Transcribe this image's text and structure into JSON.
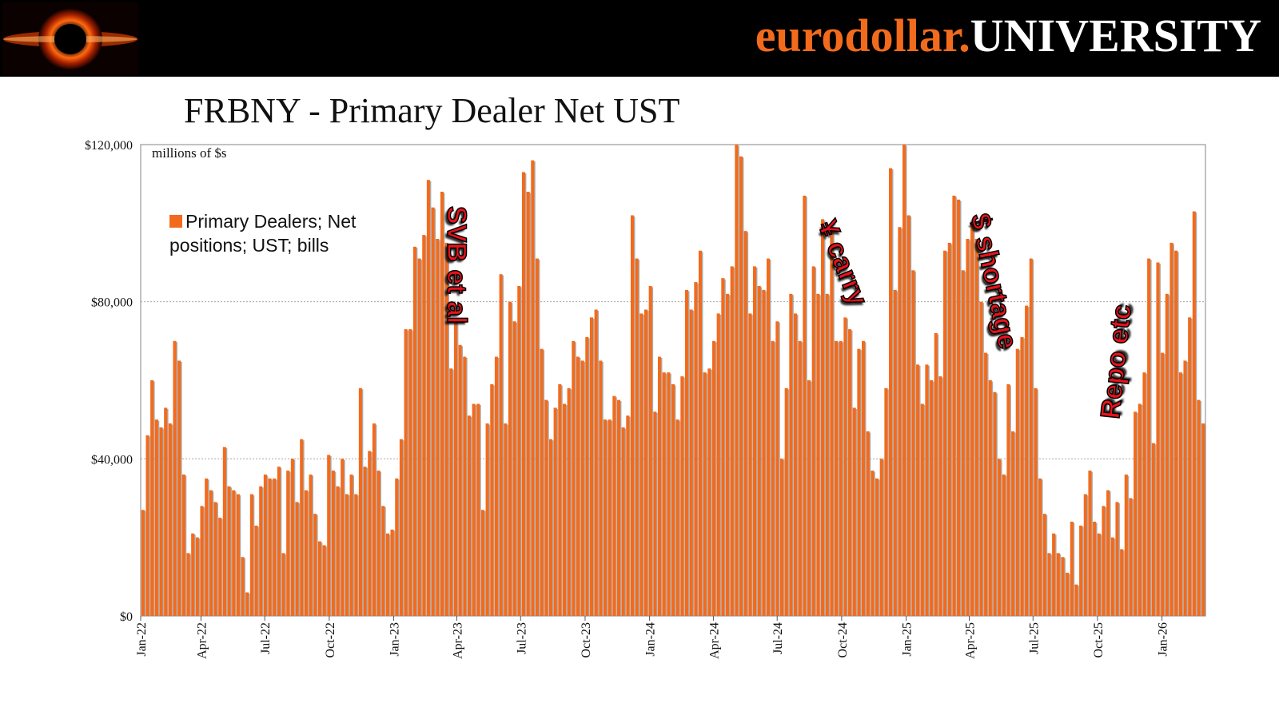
{
  "header": {
    "brand_part1": "eurodollar.",
    "brand_part2": "UNIVERSITY"
  },
  "page_title": "FRBNY - Primary Dealer Net UST",
  "units_note": "millions of $s",
  "legend_label": "Primary Dealers; Net positions; UST; bills",
  "annotations": [
    "SVB et al",
    "¥ carry",
    "$ shortage",
    "Repo etc"
  ],
  "colors": {
    "bar": "#f26b1d",
    "annotation": "#e8121b",
    "header_bg": "#000000",
    "brand_accent": "#f26b1d"
  },
  "chart_data": {
    "type": "bar",
    "title": "FRBNY - Primary Dealer Net UST",
    "ylabel": "millions of $s",
    "ylim": [
      0,
      120000
    ],
    "yticks": [
      0,
      40000,
      80000,
      120000
    ],
    "ytick_labels": [
      "$0",
      "$40,000",
      "$80,000",
      "$120,000"
    ],
    "x_start": "2022-01-05",
    "x_end": "2026-03-04",
    "xticks": [
      "Jan-22",
      "Apr-22",
      "Jul-22",
      "Oct-22",
      "Jan-23",
      "Apr-23",
      "Jul-23",
      "Oct-23",
      "Jan-24",
      "Apr-24",
      "Jul-24",
      "Oct-24",
      "Jan-25",
      "Apr-25",
      "Jul-25",
      "Oct-25",
      "Jan-26"
    ],
    "frequency": "weekly",
    "grid": true,
    "legend_position": "top-left",
    "series": [
      {
        "name": "Primary Dealers; Net positions; UST; bills",
        "values": [
          27000,
          46000,
          60000,
          50000,
          48000,
          53000,
          49000,
          70000,
          65000,
          36000,
          16000,
          21000,
          20000,
          28000,
          35000,
          32000,
          29000,
          25000,
          43000,
          33000,
          32000,
          31000,
          15000,
          6000,
          31000,
          23000,
          33000,
          36000,
          35000,
          35000,
          38000,
          16000,
          37000,
          40000,
          29000,
          45000,
          32000,
          36000,
          26000,
          19000,
          18000,
          41000,
          37000,
          33000,
          40000,
          31000,
          36000,
          31000,
          58000,
          38000,
          42000,
          49000,
          37000,
          28000,
          21000,
          22000,
          35000,
          45000,
          73000,
          73000,
          94000,
          91000,
          97000,
          111000,
          104000,
          96000,
          108000,
          95000,
          63000,
          75000,
          69000,
          66000,
          51000,
          54000,
          54000,
          27000,
          49000,
          59000,
          66000,
          87000,
          49000,
          80000,
          75000,
          84000,
          113000,
          108000,
          116000,
          91000,
          68000,
          55000,
          45000,
          53000,
          59000,
          54000,
          58000,
          70000,
          66000,
          65000,
          71000,
          76000,
          78000,
          65000,
          50000,
          50000,
          56000,
          55000,
          48000,
          51000,
          102000,
          91000,
          77000,
          78000,
          84000,
          52000,
          66000,
          62000,
          62000,
          59000,
          50000,
          61000,
          83000,
          78000,
          85000,
          93000,
          62000,
          63000,
          70000,
          77000,
          86000,
          82000,
          89000,
          120000,
          117000,
          98000,
          77000,
          89000,
          84000,
          83000,
          91000,
          70000,
          75000,
          40000,
          58000,
          82000,
          77000,
          70000,
          107000,
          60000,
          89000,
          82000,
          101000,
          82000,
          99000,
          70000,
          70000,
          76000,
          73000,
          53000,
          68000,
          70000,
          47000,
          37000,
          35000,
          40000,
          58000,
          114000,
          83000,
          99000,
          120000,
          102000,
          88000,
          64000,
          54000,
          64000,
          60000,
          72000,
          61000,
          93000,
          95000,
          107000,
          106000,
          88000,
          96000,
          100000,
          96000,
          80000,
          67000,
          60000,
          57000,
          40000,
          36000,
          59000,
          47000,
          68000,
          71000,
          79000,
          91000,
          58000,
          35000,
          26000,
          16000,
          21000,
          16000,
          15000,
          11000,
          24000,
          8000,
          23000,
          31000,
          37000,
          24000,
          21000,
          28000,
          32000,
          20000,
          29000,
          17000,
          36000,
          30000,
          52000,
          54000,
          62000,
          91000,
          44000,
          90000,
          67000,
          82000,
          95000,
          93000,
          62000,
          65000,
          76000,
          103000,
          55000,
          49000
        ]
      }
    ]
  }
}
